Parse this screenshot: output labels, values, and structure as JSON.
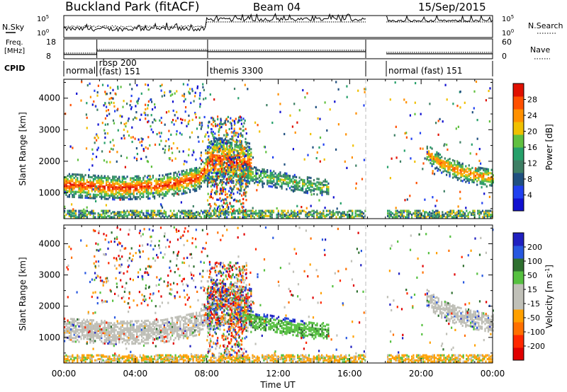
{
  "header": {
    "station": "Buckland Park (fitACF)",
    "beam": "Beam 04",
    "date": "15/Sep/2015"
  },
  "summary_panels": {
    "nsky_label": "N.Sky",
    "nsearch_label": "N.Search",
    "nsky_ticks": [
      "10^5",
      "10^0"
    ],
    "nsearch_ticks": [
      "10^5",
      "10^0"
    ],
    "freq_label_line1": "Freq.",
    "freq_label_line2": "[MHz]",
    "freq_ticks": [
      "18",
      "8"
    ],
    "nave_label": "Nave",
    "nave_ticks": [
      "60",
      "0"
    ],
    "cpid_label": "CPID"
  },
  "cpid_segments": [
    {
      "label": "normal",
      "start_hour": 0.0,
      "end_hour": 1.85
    },
    {
      "label": "rbsp 200\n(fast) 151",
      "start_hour": 1.85,
      "end_hour": 8.05
    },
    {
      "label": "themis 3300",
      "start_hour": 8.05,
      "end_hour": 16.9
    },
    {
      "label": "normal (fast) 151",
      "start_hour": 18.05,
      "end_hour": 24.0
    }
  ],
  "data_gap_hours": [
    16.9,
    18.05
  ],
  "colors": {
    "power_scale": [
      "#1010d0",
      "#2040f0",
      "#205080",
      "#3e7f64",
      "#26a06a",
      "#60c040",
      "#f0c000",
      "#ff9000",
      "#ff5000",
      "#e01000"
    ],
    "velocity_scale": [
      "#2020c0",
      "#2858e0",
      "#2f7030",
      "#56c040",
      "#c0c0b8",
      "#c0c0b8",
      "#ffa000",
      "#ff7000",
      "#ff2800",
      "#e00000"
    ],
    "ground_scatter": "#bdbdb5"
  },
  "chart_data": [
    {
      "type": "heatmap",
      "title": "",
      "xlabel": "",
      "ylabel": "Slant Range [km]",
      "x_ticks": [
        "00:00",
        "04:00",
        "08:00",
        "12:00",
        "16:00",
        "20:00",
        "00:00"
      ],
      "xlim_hours": [
        0,
        24
      ],
      "ylim": [
        180,
        4600
      ],
      "y_ticks": [
        1000,
        2000,
        3000,
        4000
      ],
      "colorbar_label": "Power [dB]",
      "colorbar_ticks": [
        4,
        8,
        12,
        16,
        20,
        24,
        28
      ],
      "colorbar_range": [
        0,
        32
      ],
      "features": [
        {
          "name": "near-range band",
          "hours": [
            0,
            24
          ],
          "range_km": [
            200,
            450
          ],
          "value_db": 14
        },
        {
          "name": "main band",
          "hour": [
            0,
            3,
            5.5,
            7.5,
            8.3,
            9.5,
            10.5
          ],
          "range_km": [
            1300,
            1200,
            1250,
            1500,
            2100,
            2050,
            1900
          ],
          "value_db": 22
        },
        {
          "name": "extended tongue",
          "hour": [
            10,
            11,
            12,
            13,
            14,
            14.8
          ],
          "range_km": [
            1700,
            1550,
            1450,
            1350,
            1250,
            1200
          ],
          "value_db": 12
        },
        {
          "name": "evening band",
          "hour": [
            20.3,
            21,
            22,
            23,
            24
          ],
          "range_km": [
            2300,
            2000,
            1750,
            1600,
            1500
          ],
          "value_db": 18
        }
      ]
    },
    {
      "type": "heatmap",
      "title": "",
      "xlabel": "Time UT",
      "ylabel": "Slant Range [km]",
      "x_ticks": [
        "00:00",
        "04:00",
        "08:00",
        "12:00",
        "16:00",
        "20:00",
        "00:00"
      ],
      "xlim_hours": [
        0,
        24
      ],
      "ylim": [
        180,
        4600
      ],
      "y_ticks": [
        1000,
        2000,
        3000,
        4000
      ],
      "colorbar_label": "Velocity [m s^-1]",
      "colorbar_ticks": [
        200,
        100,
        50,
        15,
        -15,
        -50,
        -100,
        -200
      ],
      "colorbar_range": [
        -250,
        250
      ],
      "features": [
        {
          "name": "ground scatter band",
          "hours": [
            0,
            8
          ],
          "range_km": [
            900,
            1800
          ],
          "velocity": 0
        },
        {
          "name": "positive-velocity region",
          "hours": [
            11,
            14.8
          ],
          "range_km": [
            1150,
            1900
          ],
          "velocity": 80
        },
        {
          "name": "strong positive patch",
          "hours": [
            11.5,
            13.5
          ],
          "range_km": [
            1800,
            2050
          ],
          "velocity": 220
        },
        {
          "name": "evening ground scatter",
          "hours": [
            20.3,
            24
          ],
          "range_km": [
            1450,
            2300
          ],
          "velocity": 0
        }
      ]
    }
  ]
}
